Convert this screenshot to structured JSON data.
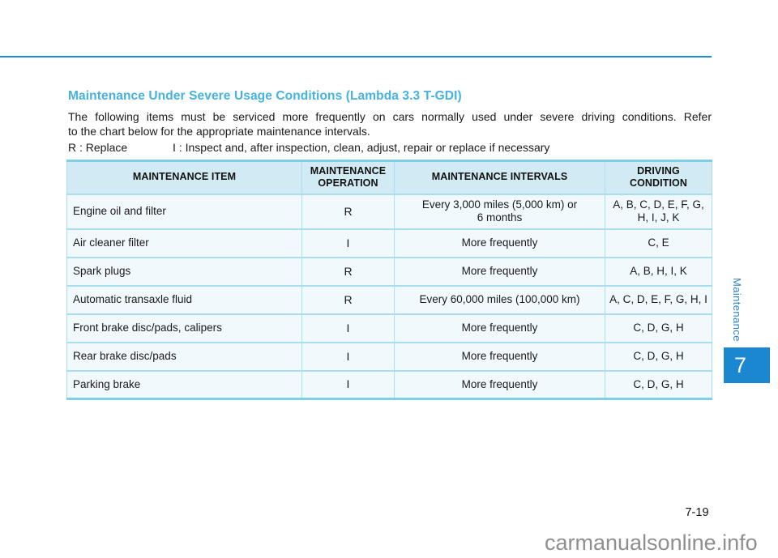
{
  "colors": {
    "accent_rule": "#1e8fd6",
    "section_title": "#45b2e2",
    "table_outer_border": "#7ed0e9",
    "table_inner_border": "#a9def0",
    "table_header_bg": "#d2eaf4",
    "table_row_bg": "#f2f9fc",
    "chapter_badge_bg": "#1b87d0",
    "side_label_text": "#2b85c8",
    "watermark_text": "#8f8f8f"
  },
  "page": {
    "section_title": "Maintenance Under Severe Usage Conditions (Lambda 3.3 T-GDI)",
    "intro_lines": [
      "The following items must be serviced more frequently on cars normally used under severe driving conditions. Refer",
      "to the chart below for the appropriate maintenance intervals."
    ],
    "legend_replace": "R : Replace",
    "legend_inspect": "I : Inspect and, after inspection, clean, adjust, repair or replace if necessary",
    "chapter_number": "7",
    "chapter_label": "Maintenance",
    "page_number": "7-19",
    "watermark": "carmanualsonline.info"
  },
  "table": {
    "headers": [
      "MAINTENANCE ITEM",
      "MAINTENANCE\nOPERATION",
      "MAINTENANCE INTERVALS",
      "DRIVING\nCONDITION"
    ],
    "rows": [
      {
        "item": "Engine oil and filter",
        "operation": "R",
        "interval": "Every 3,000 miles (5,000 km) or\n6 months",
        "condition": "A, B, C, D, E, F, G,\nH, I, J, K"
      },
      {
        "item": "Air cleaner filter",
        "operation": "I",
        "interval": "More frequently",
        "condition": "C, E"
      },
      {
        "item": "Spark plugs",
        "operation": "R",
        "interval": "More frequently",
        "condition": "A, B, H, I, K"
      },
      {
        "item": "Automatic transaxle fluid",
        "operation": "R",
        "interval": "Every 60,000 miles (100,000 km)",
        "condition": "A, C, D, E, F, G, H, I"
      },
      {
        "item": "Front brake disc/pads, calipers",
        "operation": "I",
        "interval": "More frequently",
        "condition": "C, D, G, H"
      },
      {
        "item": "Rear brake disc/pads",
        "operation": "I",
        "interval": "More frequently",
        "condition": "C, D, G, H"
      },
      {
        "item": "Parking brake",
        "operation": "I",
        "interval": "More frequently",
        "condition": "C, D, G, H"
      }
    ]
  }
}
